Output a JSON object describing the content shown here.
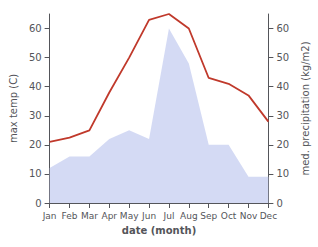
{
  "chart_data": {
    "type": "line",
    "categories": [
      "Jan",
      "Feb",
      "Mar",
      "Apr",
      "May",
      "Jun",
      "Jul",
      "Aug",
      "Sep",
      "Oct",
      "Nov",
      "Dec"
    ],
    "series": [
      {
        "type": "area",
        "color": "#c5cdf0",
        "values": [
          12,
          16,
          16,
          22,
          25,
          22,
          60,
          48,
          20,
          20,
          9,
          9
        ]
      },
      {
        "type": "line",
        "color": "#c0392b",
        "values": [
          21,
          22.5,
          25,
          38,
          50,
          63,
          65,
          60,
          43,
          41,
          37,
          28
        ]
      }
    ],
    "xlabel": "date (month)",
    "ylabel": "max temp (C)",
    "y2label": "med. precipitation (kg/m2)",
    "ylim": [
      0,
      65
    ],
    "yticks": [
      0,
      10,
      20,
      30,
      40,
      50,
      60
    ],
    "y2lim": [
      0,
      65
    ],
    "y2ticks": [
      0,
      10,
      20,
      30,
      40,
      50,
      60
    ],
    "grid": false
  }
}
